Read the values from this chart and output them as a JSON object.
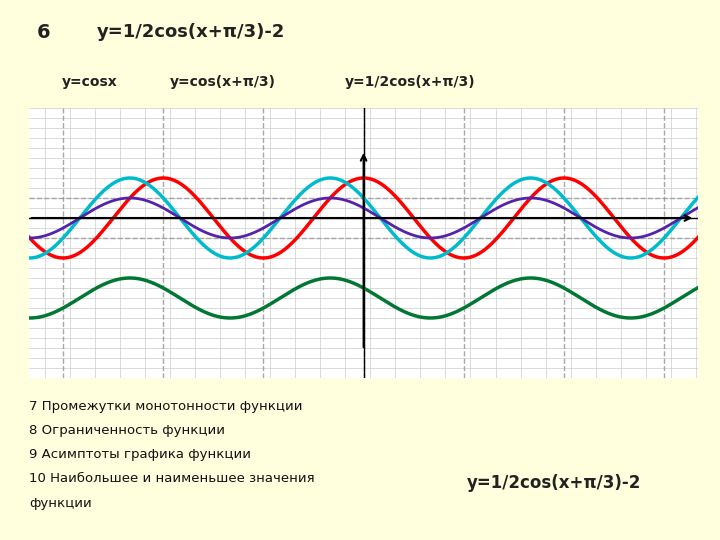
{
  "title_num": "6",
  "title_func": "y=1/2cos(x+π/3)-2",
  "title_bg": "#aaeeff",
  "bg_color": "#ffffdd",
  "plot_bg": "#ffffff",
  "label1": "y=cosx",
  "label2": "y=cos(x+π/3)",
  "label3": "y=1/2cos(x+π/3)",
  "label4": "y=1/2cos(x+π/3)-2",
  "label1_bg": "#99ccbb",
  "label2_bg": "#dd8888",
  "label3_bg": "#aa99cc",
  "label4_bg": "#77ccaa",
  "color_cosx": "#ff0000",
  "color_cosxph": "#00bbcc",
  "color_half_cosxph": "#5522aa",
  "color_final": "#007733",
  "xmin": -10.5,
  "xmax": 10.5,
  "ymin": -3.3,
  "ymax": 1.8,
  "dashed_y1": 0.5,
  "dashed_y2": -0.5,
  "grid_color": "#cccccc",
  "dashed_color": "#999999",
  "text_lines": [
    "7 Промежутки монотонности функции",
    "8 Ограниченность функции",
    "9 Асимптоты графика функции",
    "10 Наибольшее и наименьшее значения",
    "функции"
  ],
  "vlines": [
    -9.42,
    -6.28,
    -3.14,
    0.0,
    3.14,
    6.28,
    9.42
  ]
}
